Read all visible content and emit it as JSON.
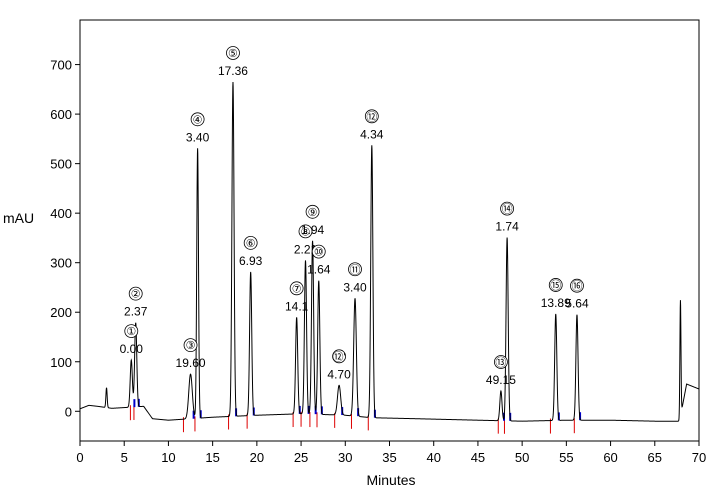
{
  "chart_data": {
    "type": "line",
    "title": "",
    "xlabel": "Minutes",
    "ylabel": "mAU",
    "xlim": [
      0,
      70
    ],
    "ylim": [
      -60,
      790
    ],
    "xticks": [
      0,
      5,
      10,
      15,
      20,
      25,
      30,
      35,
      40,
      45,
      50,
      55,
      60,
      65,
      70
    ],
    "yticks": [
      0,
      100,
      200,
      300,
      400,
      500,
      600,
      700
    ],
    "grid": false,
    "legend": "none",
    "colors": {
      "trace": "#000000",
      "baseline_marker": "#dd0000",
      "peak_marker": "#0000cc"
    },
    "baseline": [
      {
        "x": 0.0,
        "y": 5
      },
      {
        "x": 1.0,
        "y": 12
      },
      {
        "x": 2.0,
        "y": 10
      },
      {
        "x": 3.6,
        "y": 6
      },
      {
        "x": 5.5,
        "y": 8
      },
      {
        "x": 7.2,
        "y": 10
      },
      {
        "x": 8.2,
        "y": -15
      },
      {
        "x": 10.0,
        "y": -18
      },
      {
        "x": 15.0,
        "y": -12
      },
      {
        "x": 20.0,
        "y": -8
      },
      {
        "x": 25.0,
        "y": -5
      },
      {
        "x": 30.0,
        "y": -8
      },
      {
        "x": 33.0,
        "y": -13
      },
      {
        "x": 38.0,
        "y": -15
      },
      {
        "x": 45.0,
        "y": -18
      },
      {
        "x": 50.0,
        "y": -20
      },
      {
        "x": 55.0,
        "y": -18
      },
      {
        "x": 60.0,
        "y": -18
      },
      {
        "x": 65.0,
        "y": -20
      },
      {
        "x": 67.8,
        "y": -20
      },
      {
        "x": 68.6,
        "y": 55
      },
      {
        "x": 70.0,
        "y": 45
      }
    ],
    "peaks": [
      {
        "id": "①",
        "label": "0.00",
        "rt": 5.8,
        "height": 95,
        "width": 0.12
      },
      {
        "id": "②",
        "label": "2.37",
        "rt": 6.3,
        "height": 170,
        "width": 0.12
      },
      {
        "id": "③",
        "label": "19.60",
        "rt": 12.5,
        "height": 90,
        "width": 0.2
      },
      {
        "id": "④",
        "label": "3.40",
        "rt": 13.3,
        "height": 545,
        "width": 0.1
      },
      {
        "id": "⑤",
        "label": "17.36",
        "rt": 17.3,
        "height": 675,
        "width": 0.12
      },
      {
        "id": "⑥",
        "label": "6.93",
        "rt": 19.3,
        "height": 290,
        "width": 0.12
      },
      {
        "id": "⑦",
        "label": "14.1",
        "rt": 24.5,
        "height": 195,
        "width": 0.12
      },
      {
        "id": "⑧",
        "label": "2.21",
        "rt": 25.5,
        "height": 310,
        "width": 0.12
      },
      {
        "id": "⑨",
        "label": "1.94",
        "rt": 26.3,
        "height": 350,
        "width": 0.12
      },
      {
        "id": "⑩",
        "label": "1.64",
        "rt": 27.0,
        "height": 270,
        "width": 0.12
      },
      {
        "id": "⑫'",
        "label": "4.70",
        "rt": 29.3,
        "height": 60,
        "width": 0.18
      },
      {
        "id": "⑪",
        "label": "3.40",
        "rt": 31.1,
        "height": 238,
        "width": 0.15
      },
      {
        "id": "⑫",
        "label": "4.34",
        "rt": 33.0,
        "height": 550,
        "width": 0.12
      },
      {
        "id": "⑬",
        "label": "49.15",
        "rt": 47.6,
        "height": 60,
        "width": 0.12
      },
      {
        "id": "⑭",
        "label": "1.74",
        "rt": 48.3,
        "height": 370,
        "width": 0.12
      },
      {
        "id": "⑮",
        "label": "13.89",
        "rt": 53.8,
        "height": 215,
        "width": 0.12
      },
      {
        "id": "⑯",
        "label": "5.64",
        "rt": 56.2,
        "height": 213,
        "width": 0.12
      }
    ],
    "extra_peaks": [
      {
        "rt": 3.0,
        "height": 40,
        "width": 0.07
      },
      {
        "rt": 67.9,
        "height": 235,
        "width": 0.06
      }
    ],
    "baseline_markers": [
      5.7,
      6.1,
      11.7,
      13.0,
      16.8,
      18.9,
      24.1,
      25.0,
      26.0,
      26.8,
      28.8,
      30.7,
      32.6,
      47.3,
      48.0,
      53.2,
      55.9
    ],
    "peak_markers": [
      5.8,
      6.3,
      12.5,
      13.3,
      17.3,
      19.3,
      24.5,
      25.5,
      26.3,
      27.0,
      29.3,
      31.1,
      33.0,
      47.6,
      48.3,
      53.8,
      56.2
    ]
  }
}
